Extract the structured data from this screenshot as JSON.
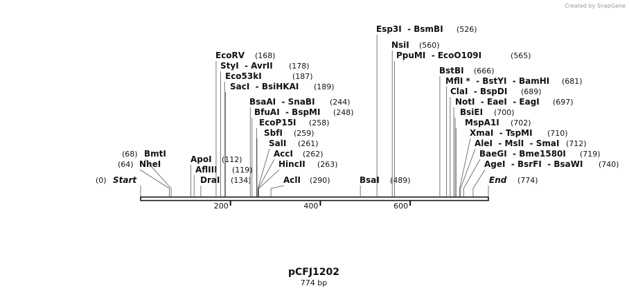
{
  "credit": "Created by SnapGene",
  "title": "pCFJ1202",
  "subtitle": "774 bp",
  "map": {
    "range": [
      0,
      774
    ],
    "ticks": [
      200,
      400,
      600
    ]
  },
  "sites": [
    {
      "name": "Start",
      "position": 0,
      "position_label": "(0)"
    },
    {
      "name": "NheI",
      "position": 64,
      "position_label": "(64)"
    },
    {
      "name": "BmtI",
      "position": 68,
      "position_label": "(68)"
    },
    {
      "name": "ApoI",
      "position": 112,
      "position_label": "(112)"
    },
    {
      "name": "AflIII",
      "position": 119,
      "position_label": "(119)"
    },
    {
      "name": "DraI",
      "position": 134,
      "position_label": "(134)"
    },
    {
      "name": "EcoRV",
      "position": 168,
      "position_label": "(168)"
    },
    {
      "name": "StyI  - AvrII",
      "position": 178,
      "position_label": "(178)"
    },
    {
      "name": "Eco53kI",
      "position": 187,
      "position_label": "(187)"
    },
    {
      "name": "SacI  - BsiHKAI",
      "position": 189,
      "position_label": "(189)"
    },
    {
      "name": "BsaAI  - SnaBI",
      "position": 244,
      "position_label": "(244)"
    },
    {
      "name": "BfuAI  - BspMI",
      "position": 248,
      "position_label": "(248)"
    },
    {
      "name": "EcoP15I",
      "position": 258,
      "position_label": "(258)"
    },
    {
      "name": "SbfI",
      "position": 259,
      "position_label": "(259)"
    },
    {
      "name": "SalI",
      "position": 261,
      "position_label": "(261)"
    },
    {
      "name": "AccI",
      "position": 262,
      "position_label": "(262)"
    },
    {
      "name": "HincII",
      "position": 263,
      "position_label": "(263)"
    },
    {
      "name": "AclI",
      "position": 290,
      "position_label": "(290)"
    },
    {
      "name": "BsaI",
      "position": 489,
      "position_label": "(489)"
    },
    {
      "name": "Esp3I  - BsmBI",
      "position": 526,
      "position_label": "(526)"
    },
    {
      "name": "NsiI",
      "position": 560,
      "position_label": "(560)"
    },
    {
      "name": "PpuMI  - EcoO109I",
      "position": 565,
      "position_label": "(565)"
    },
    {
      "name": "BstBI",
      "position": 666,
      "position_label": "(666)"
    },
    {
      "name": "MflI *  - BstYI  - BamHI",
      "position": 681,
      "position_label": "(681)"
    },
    {
      "name": "ClaI  - BspDI",
      "position": 689,
      "position_label": "(689)"
    },
    {
      "name": "NotI  - EaeI  - EagI",
      "position": 697,
      "position_label": "(697)"
    },
    {
      "name": "BsiEI",
      "position": 700,
      "position_label": "(700)"
    },
    {
      "name": "MspA1I",
      "position": 702,
      "position_label": "(702)"
    },
    {
      "name": "XmaI  - TspMI",
      "position": 710,
      "position_label": "(710)"
    },
    {
      "name": "AleI  - MslI  - SmaI",
      "position": 712,
      "position_label": "(712)"
    },
    {
      "name": "BaeGI  - Bme1580I",
      "position": 719,
      "position_label": "(719)"
    },
    {
      "name": "AgeI  - BsrFI  - BsaWI",
      "position": 740,
      "position_label": "(740)"
    },
    {
      "name": "End",
      "position": 774,
      "position_label": "(774)"
    }
  ]
}
